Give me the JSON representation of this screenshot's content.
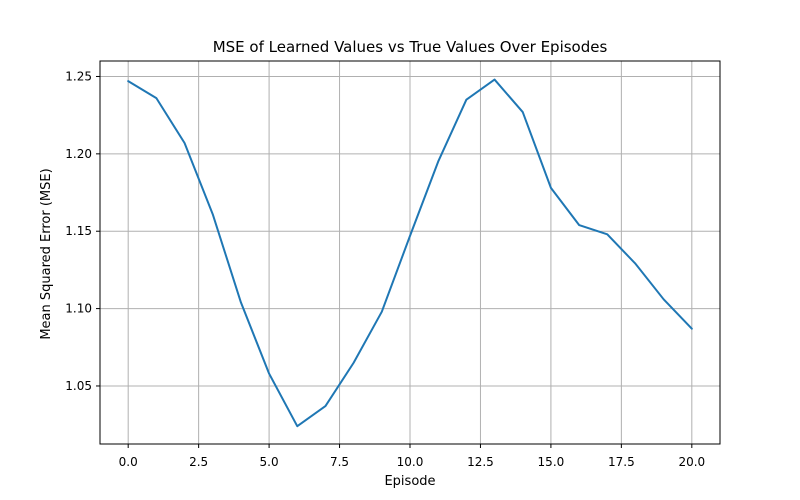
{
  "chart_data": {
    "type": "line",
    "title": "MSE of Learned Values vs True Values Over Episodes",
    "xlabel": "Episode",
    "ylabel": "Mean Squared Error (MSE)",
    "xlim": [
      -1,
      21
    ],
    "ylim": [
      1.0125,
      1.26
    ],
    "x_ticks": [
      0.0,
      2.5,
      5.0,
      7.5,
      10.0,
      12.5,
      15.0,
      17.5,
      20.0
    ],
    "x_tick_labels": [
      "0.0",
      "2.5",
      "5.0",
      "7.5",
      "10.0",
      "12.5",
      "15.0",
      "17.5",
      "20.0"
    ],
    "y_ticks": [
      1.05,
      1.1,
      1.15,
      1.2,
      1.25
    ],
    "y_tick_labels": [
      "1.05",
      "1.10",
      "1.15",
      "1.20",
      "1.25"
    ],
    "grid": true,
    "series": [
      {
        "color": "#1f77b4",
        "x": [
          0,
          1,
          2,
          3,
          4,
          5,
          6,
          7,
          8,
          9,
          10,
          11,
          12,
          13,
          14,
          15,
          16,
          17,
          18,
          19,
          20
        ],
        "y": [
          1.247,
          1.236,
          1.207,
          1.161,
          1.104,
          1.058,
          1.024,
          1.037,
          1.065,
          1.098,
          1.147,
          1.195,
          1.235,
          1.248,
          1.227,
          1.178,
          1.154,
          1.148,
          1.129,
          1.106,
          1.087
        ]
      }
    ]
  }
}
